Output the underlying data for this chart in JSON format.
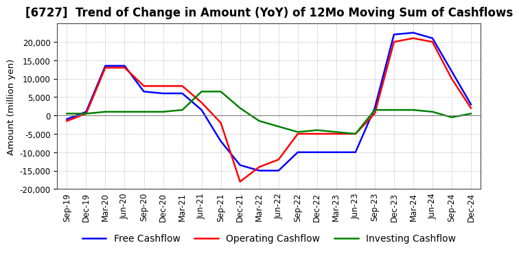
{
  "title": "[6727]  Trend of Change in Amount (YoY) of 12Mo Moving Sum of Cashflows",
  "ylabel": "Amount (million yen)",
  "xlabels": [
    "Sep-19",
    "Dec-19",
    "Mar-20",
    "Jun-20",
    "Sep-20",
    "Dec-20",
    "Mar-21",
    "Jun-21",
    "Sep-21",
    "Dec-21",
    "Mar-22",
    "Jun-22",
    "Sep-22",
    "Dec-22",
    "Mar-23",
    "Jun-23",
    "Sep-23",
    "Dec-23",
    "Mar-24",
    "Jun-24",
    "Sep-24",
    "Dec-24"
  ],
  "operating": [
    -1500,
    500,
    13000,
    13000,
    8000,
    8000,
    8000,
    3500,
    -2000,
    -18000,
    -14000,
    -12000,
    -5000,
    -5000,
    -5000,
    -5000,
    500,
    20000,
    21000,
    20000,
    10000,
    2000
  ],
  "investing": [
    500,
    500,
    1000,
    1000,
    1000,
    1000,
    1500,
    6500,
    6500,
    2000,
    -1500,
    -3000,
    -4500,
    -4000,
    -4500,
    -5000,
    1500,
    1500,
    1500,
    1000,
    -500,
    500
  ],
  "free": [
    -1000,
    1000,
    13500,
    13500,
    6500,
    6000,
    6000,
    1500,
    -7000,
    -13500,
    -15000,
    -15000,
    -10000,
    -10000,
    -10000,
    -10000,
    2000,
    22000,
    22500,
    21000,
    12000,
    3000
  ],
  "ylim": [
    -20000,
    25000
  ],
  "yticks": [
    -20000,
    -15000,
    -10000,
    -5000,
    0,
    5000,
    10000,
    15000,
    20000
  ],
  "operating_color": "#ff0000",
  "investing_color": "#008000",
  "free_color": "#0000ff",
  "background_color": "#ffffff",
  "grid_color": "#aaaaaa",
  "title_fontsize": 12,
  "axis_fontsize": 8.5,
  "legend_fontsize": 10
}
